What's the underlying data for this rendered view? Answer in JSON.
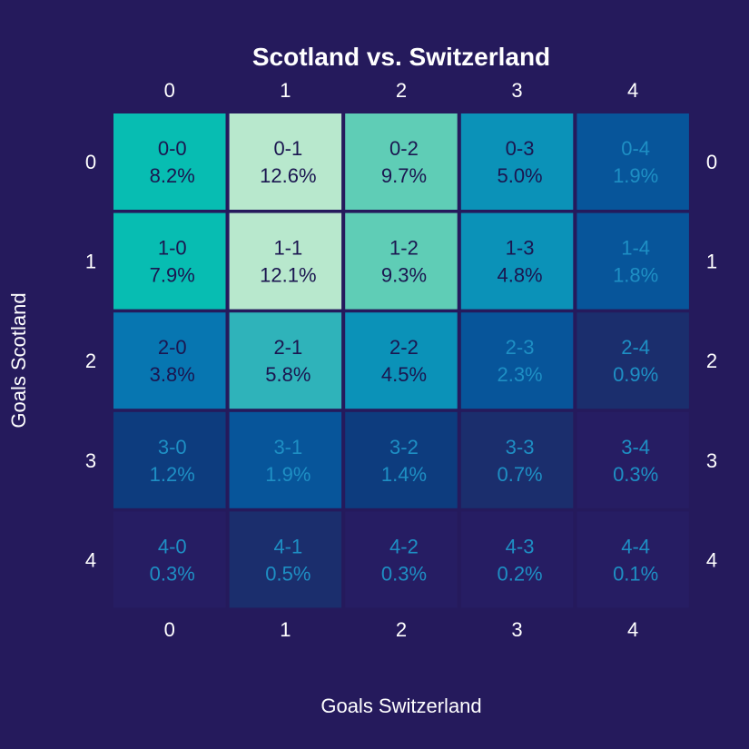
{
  "chart_data": {
    "type": "heatmap",
    "title": "Scotland vs. Switzerland",
    "xlabel": "Goals Switzerland",
    "ylabel": "Goals Scotland",
    "x_categories": [
      "0",
      "1",
      "2",
      "3",
      "4"
    ],
    "y_categories": [
      "0",
      "1",
      "2",
      "3",
      "4"
    ],
    "cells": [
      [
        {
          "label": "0-0",
          "value": "8.2%"
        },
        {
          "label": "0-1",
          "value": "12.6%"
        },
        {
          "label": "0-2",
          "value": "9.7%"
        },
        {
          "label": "0-3",
          "value": "5.0%"
        },
        {
          "label": "0-4",
          "value": "1.9%"
        }
      ],
      [
        {
          "label": "1-0",
          "value": "7.9%"
        },
        {
          "label": "1-1",
          "value": "12.1%"
        },
        {
          "label": "1-2",
          "value": "9.3%"
        },
        {
          "label": "1-3",
          "value": "4.8%"
        },
        {
          "label": "1-4",
          "value": "1.8%"
        }
      ],
      [
        {
          "label": "2-0",
          "value": "3.8%"
        },
        {
          "label": "2-1",
          "value": "5.8%"
        },
        {
          "label": "2-2",
          "value": "4.5%"
        },
        {
          "label": "2-3",
          "value": "2.3%"
        },
        {
          "label": "2-4",
          "value": "0.9%"
        }
      ],
      [
        {
          "label": "3-0",
          "value": "1.2%"
        },
        {
          "label": "3-1",
          "value": "1.9%"
        },
        {
          "label": "3-2",
          "value": "1.4%"
        },
        {
          "label": "3-3",
          "value": "0.7%"
        },
        {
          "label": "3-4",
          "value": "0.3%"
        }
      ],
      [
        {
          "label": "4-0",
          "value": "0.3%"
        },
        {
          "label": "4-1",
          "value": "0.5%"
        },
        {
          "label": "4-2",
          "value": "0.3%"
        },
        {
          "label": "4-3",
          "value": "0.2%"
        },
        {
          "label": "4-4",
          "value": "0.1%"
        }
      ]
    ],
    "colors": {
      "background": "#251a5c",
      "scale": [
        "#261d63",
        "#1b2e6d",
        "#0d3c7e",
        "#07559a",
        "#0776b1",
        "#0b92b8",
        "#2fb3ba",
        "#07bdb2",
        "#5fcdb6",
        "#b8e8cd"
      ],
      "text_dark": "#1b1650",
      "text_light": "#1e8fc4"
    }
  }
}
